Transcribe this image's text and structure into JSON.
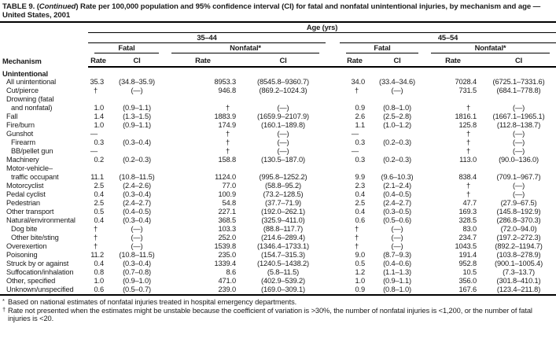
{
  "title": {
    "prefix": "TABLE 9. (",
    "continued": "Continued",
    "rest": ") Rate per 100,000 population and 95% confidence interval (CI) for fatal and nonfatal unintentional injuries, by mechanism and age — United States, 2001"
  },
  "header": {
    "mechanism": "Mechanism",
    "age": "Age (yrs)",
    "group1": "35–44",
    "group2": "45–54",
    "fatal": "Fatal",
    "nonfatal": "Nonfatal*",
    "rate": "Rate",
    "ci": "CI"
  },
  "rows": [
    {
      "label": "Unintentional",
      "indent": 0,
      "section": true
    },
    {
      "label": "All unintentional",
      "indent": 1,
      "v": [
        "35.3",
        "(34.8–35.9)",
        "8953.3",
        "(8545.8–9360.7)",
        "34.0",
        "(33.4–34.6)",
        "7028.4",
        "(6725.1–7331.6)"
      ]
    },
    {
      "label": "Cut/pierce",
      "indent": 1,
      "v": [
        "†",
        "(—)",
        "946.8",
        "(869.2–1024.3)",
        "†",
        "(—)",
        "731.5",
        "(684.1–778.8)"
      ]
    },
    {
      "label": "Drowning (fatal",
      "label2": "and nonfatal)",
      "indent": 1,
      "v": [
        "1.0",
        "(0.9–1.1)",
        "†",
        "(—)",
        "0.9",
        "(0.8–1.0)",
        "†",
        "(—)"
      ]
    },
    {
      "label": "Fall",
      "indent": 1,
      "v": [
        "1.4",
        "(1.3–1.5)",
        "1883.9",
        "(1659.9–2107.9)",
        "2.6",
        "(2.5–2.8)",
        "1816.1",
        "(1667.1–1965.1)"
      ]
    },
    {
      "label": "Fire/burn",
      "indent": 1,
      "v": [
        "1.0",
        "(0.9–1.1)",
        "174.9",
        "(160.1–189.8)",
        "1.1",
        "(1.0–1.2)",
        "125.8",
        "(112.8–138.7)"
      ]
    },
    {
      "label": "Gunshot",
      "indent": 1,
      "v": [
        "—",
        "",
        "†",
        "(—)",
        "—",
        "",
        "†",
        "(—)"
      ]
    },
    {
      "label": "Firearm",
      "indent": 2,
      "v": [
        "0.3",
        "(0.3–0.4)",
        "†",
        "(—)",
        "0.3",
        "(0.2–0.3)",
        "†",
        "(—)"
      ]
    },
    {
      "label": "BB/pellet gun",
      "indent": 2,
      "v": [
        "—",
        "",
        "†",
        "(—)",
        "—",
        "",
        "†",
        "(—)"
      ]
    },
    {
      "label": "Machinery",
      "indent": 1,
      "v": [
        "0.2",
        "(0.2–0.3)",
        "158.8",
        "(130.5–187.0)",
        "0.3",
        "(0.2–0.3)",
        "113.0",
        "(90.0–136.0)"
      ]
    },
    {
      "label": "Motor-vehicle–",
      "label2": "traffic occupant",
      "indent": 1,
      "v": [
        "11.1",
        "(10.8–11.5)",
        "1124.0",
        "(995.8–1252.2)",
        "9.9",
        "(9.6–10.3)",
        "838.4",
        "(709.1–967.7)"
      ]
    },
    {
      "label": "Motorcyclist",
      "indent": 1,
      "v": [
        "2.5",
        "(2.4–2.6)",
        "77.0",
        "(58.8–95.2)",
        "2.3",
        "(2.1–2.4)",
        "†",
        "(—)"
      ]
    },
    {
      "label": "Pedal cyclist",
      "indent": 1,
      "v": [
        "0.4",
        "(0.3–0.4)",
        "100.9",
        "(73.2–128.5)",
        "0.4",
        "(0.4–0.5)",
        "†",
        "(—)"
      ]
    },
    {
      "label": "Pedestrian",
      "indent": 1,
      "v": [
        "2.5",
        "(2.4–2.7)",
        "54.8",
        "(37.7–71.9)",
        "2.5",
        "(2.4–2.7)",
        "47.7",
        "(27.9–67.5)"
      ]
    },
    {
      "label": "Other transport",
      "indent": 1,
      "v": [
        "0.5",
        "(0.4–0.5)",
        "227.1",
        "(192.0–262.1)",
        "0.4",
        "(0.3–0.5)",
        "169.3",
        "(145.8–192.9)"
      ]
    },
    {
      "label": "Natural/environmental",
      "indent": 1,
      "v": [
        "0.4",
        "(0.3–0.4)",
        "368.5",
        "(325.9–411.0)",
        "0.6",
        "(0.5–0.6)",
        "328.5",
        "(286.8–370.3)"
      ]
    },
    {
      "label": "Dog bite",
      "indent": 2,
      "v": [
        "†",
        "(—)",
        "103.3",
        "(88.8–117.7)",
        "†",
        "(—)",
        "83.0",
        "(72.0–94.0)"
      ]
    },
    {
      "label": "Other bite/sting",
      "indent": 2,
      "v": [
        "†",
        "(—)",
        "252.0",
        "(214.6–289.4)",
        "†",
        "(—)",
        "234.7",
        "(197.2–272.3)"
      ]
    },
    {
      "label": "Overexertion",
      "indent": 1,
      "v": [
        "†",
        "(—)",
        "1539.8",
        "(1346.4–1733.1)",
        "†",
        "(—)",
        "1043.5",
        "(892.2–1194.7)"
      ]
    },
    {
      "label": "Poisoning",
      "indent": 1,
      "v": [
        "11.2",
        "(10.8–11.5)",
        "235.0",
        "(154.7–315.3)",
        "9.0",
        "(8.7–9.3)",
        "191.4",
        "(103.8–278.9)"
      ]
    },
    {
      "label": "Struck by or against",
      "indent": 1,
      "v": [
        "0.4",
        "(0.3–0.4)",
        "1339.4",
        "(1240.5–1438.2)",
        "0.5",
        "(0.4–0.6)",
        "952.8",
        "(900.1–1005.4)"
      ]
    },
    {
      "label": "Suffocation/inhalation",
      "indent": 1,
      "v": [
        "0.8",
        "(0.7–0.8)",
        "8.6",
        "(5.8–11.5)",
        "1.2",
        "(1.1–1.3)",
        "10.5",
        "(7.3–13.7)"
      ]
    },
    {
      "label": "Other, specified",
      "indent": 1,
      "v": [
        "1.0",
        "(0.9–1.0)",
        "471.0",
        "(402.9–539.2)",
        "1.0",
        "(0.9–1.1)",
        "356.0",
        "(301.8–410.1)"
      ]
    },
    {
      "label": "Unknown/unspecified",
      "indent": 1,
      "v": [
        "0.6",
        "(0.5–0.7)",
        "239.0",
        "(169.0–309.1)",
        "0.9",
        "(0.8–1.0)",
        "167.6",
        "(123.4–211.8)"
      ]
    }
  ],
  "footnotes": [
    {
      "marker": "*",
      "text": "Based on national estimates of nonfatal injuries treated in hospital emergency departments."
    },
    {
      "marker": "†",
      "text": "Rate not presented when the estimates might be unstable because the coefficient of variation is >30%, the number of nonfatal injuries is <1,200, or the number of fatal injuries is <20."
    }
  ]
}
